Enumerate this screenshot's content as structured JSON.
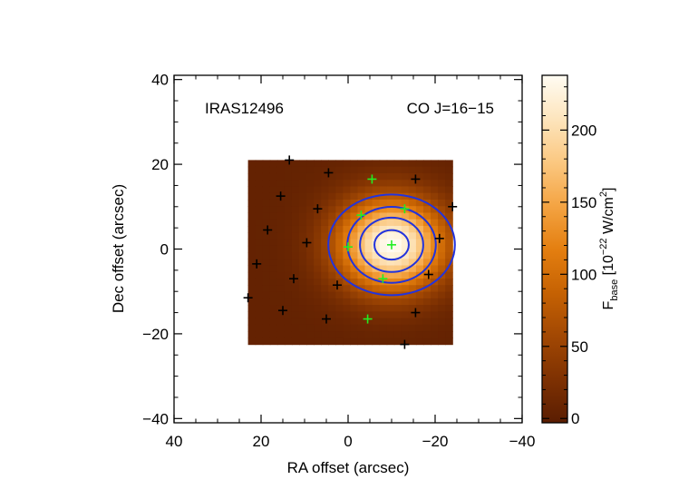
{
  "chart_data": {
    "type": "heatmap",
    "object_label": "IRAS12496",
    "line_label": "CO J=16−15",
    "xlabel": "RA offset (arcsec)",
    "ylabel": "Dec offset (arcsec)",
    "xlim": [
      40,
      -40
    ],
    "ylim": [
      -41,
      41
    ],
    "xticks": [
      40,
      20,
      0,
      -20,
      -40
    ],
    "xtick_labels": [
      "40",
      "20",
      "0",
      "−20",
      "−40"
    ],
    "yticks": [
      -40,
      -20,
      0,
      20,
      40
    ],
    "ytick_labels": [
      "−40",
      "−20",
      "0",
      "20",
      "40"
    ],
    "map_extent": {
      "ra": [
        23,
        -24
      ],
      "dec": [
        -22.5,
        21
      ]
    },
    "colorbar": {
      "label_main": "F",
      "label_sub": "base",
      "label_units": " [10",
      "label_exp": "−22",
      "label_units2": " W/cm",
      "label_exp2": "2",
      "label_close": "]",
      "range": [
        -3,
        238
      ],
      "ticks": [
        0,
        50,
        100,
        150,
        200
      ],
      "tick_labels": [
        "0",
        "50",
        "100",
        "150",
        "200"
      ]
    },
    "peak": {
      "ra": -10,
      "dec": 1,
      "value": 238,
      "sigma_ra": 8.5,
      "sigma_dec": 7.5,
      "background": 5
    },
    "contours": [
      {
        "level": 0.3,
        "color": "#2233dd"
      },
      {
        "level": 0.5,
        "color": "#2233dd"
      },
      {
        "level": 0.7,
        "color": "#2233dd"
      },
      {
        "level": 0.9,
        "color": "#2233dd"
      }
    ],
    "black_pixels": [
      [
        13.5,
        21
      ],
      [
        4.5,
        18
      ],
      [
        15.5,
        12.5
      ],
      [
        -15.5,
        16.5
      ],
      [
        7,
        9.5
      ],
      [
        18.5,
        4.5
      ],
      [
        9.5,
        1.5
      ],
      [
        21,
        -3.5
      ],
      [
        12.5,
        -7
      ],
      [
        2.5,
        -8.5
      ],
      [
        23,
        -11.5
      ],
      [
        15,
        -14.5
      ],
      [
        5,
        -16.5
      ],
      [
        -21,
        2.5
      ],
      [
        -18.5,
        -6
      ],
      [
        -15.5,
        -15
      ],
      [
        -13,
        -22.5
      ],
      [
        -24,
        10
      ]
    ],
    "green_pixels": [
      [
        -5.5,
        16.5
      ],
      [
        -13,
        9.5
      ],
      [
        -3,
        8
      ],
      [
        -10,
        1
      ],
      [
        0,
        0.5
      ],
      [
        -8,
        -7
      ],
      [
        -4.5,
        -16.5
      ]
    ]
  },
  "colors": {
    "cmap": [
      "#5a1d02",
      "#7e3102",
      "#a24803",
      "#c66203",
      "#e47f10",
      "#f4a443",
      "#fbc881",
      "#fde5bd",
      "#fffcf3"
    ],
    "black_marker": "#000000",
    "green_marker": "#22ee22"
  }
}
